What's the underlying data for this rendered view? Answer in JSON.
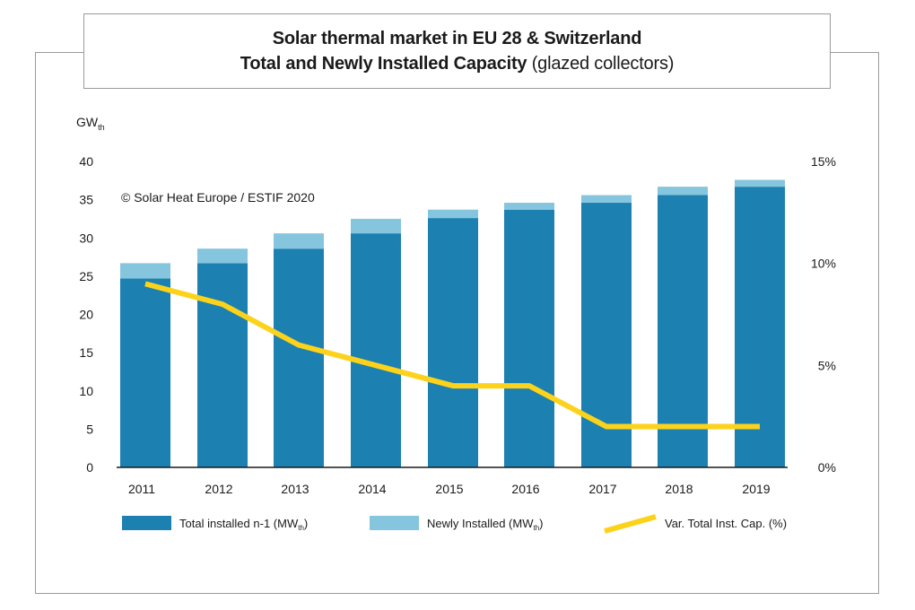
{
  "title": {
    "line1": "Solar thermal market in EU 28 & Switzerland",
    "line2_bold": "Total and Newly Installed Capacity",
    "line2_normal": " (glazed collectors)"
  },
  "copyright": "© Solar Heat Europe / ESTIF 2020",
  "colors": {
    "total": "#1c80b0",
    "new": "#86c5de",
    "line": "#fdd21a",
    "axis": "#1a1a1a",
    "frame": "#9a9a9a"
  },
  "chart_data": {
    "type": "bar",
    "categories": [
      "2011",
      "2012",
      "2013",
      "2014",
      "2015",
      "2016",
      "2017",
      "2018",
      "2019"
    ],
    "series": [
      {
        "name": "Total installed n-1 (MWth)",
        "kind": "stacked-bar",
        "values": [
          24.7,
          26.7,
          28.6,
          30.6,
          32.6,
          33.7,
          34.6,
          35.6,
          36.7
        ]
      },
      {
        "name": "Newly Installed (MWth)",
        "kind": "stacked-bar",
        "values": [
          2.0,
          1.9,
          2.0,
          1.9,
          1.1,
          0.9,
          1.0,
          1.1,
          0.9
        ]
      },
      {
        "name": "Var. Total Inst. Cap. (%)",
        "kind": "line",
        "axis": "right",
        "values": [
          9,
          8,
          6,
          5,
          4,
          4,
          2,
          2,
          2
        ]
      }
    ],
    "ylabel": {
      "base": "GW",
      "sub": "th"
    },
    "ylim": [
      0,
      40
    ],
    "y_ticks": [
      "0",
      "5",
      "10",
      "15",
      "20",
      "25",
      "30",
      "35",
      "40"
    ],
    "y2lim": [
      0,
      15
    ],
    "y2_ticks": [
      "0%",
      "5%",
      "10%",
      "15%"
    ],
    "legend": {
      "placement": "bottom",
      "items": [
        {
          "base": "Total installed n-1 (MW",
          "sub": "th",
          "suffix": ")"
        },
        {
          "base": "Newly Installed (MW",
          "sub": "th",
          "suffix": ")"
        },
        {
          "base": "Var. Total Inst. Cap. (%)",
          "sub": "",
          "suffix": ""
        }
      ]
    },
    "grid": false
  }
}
